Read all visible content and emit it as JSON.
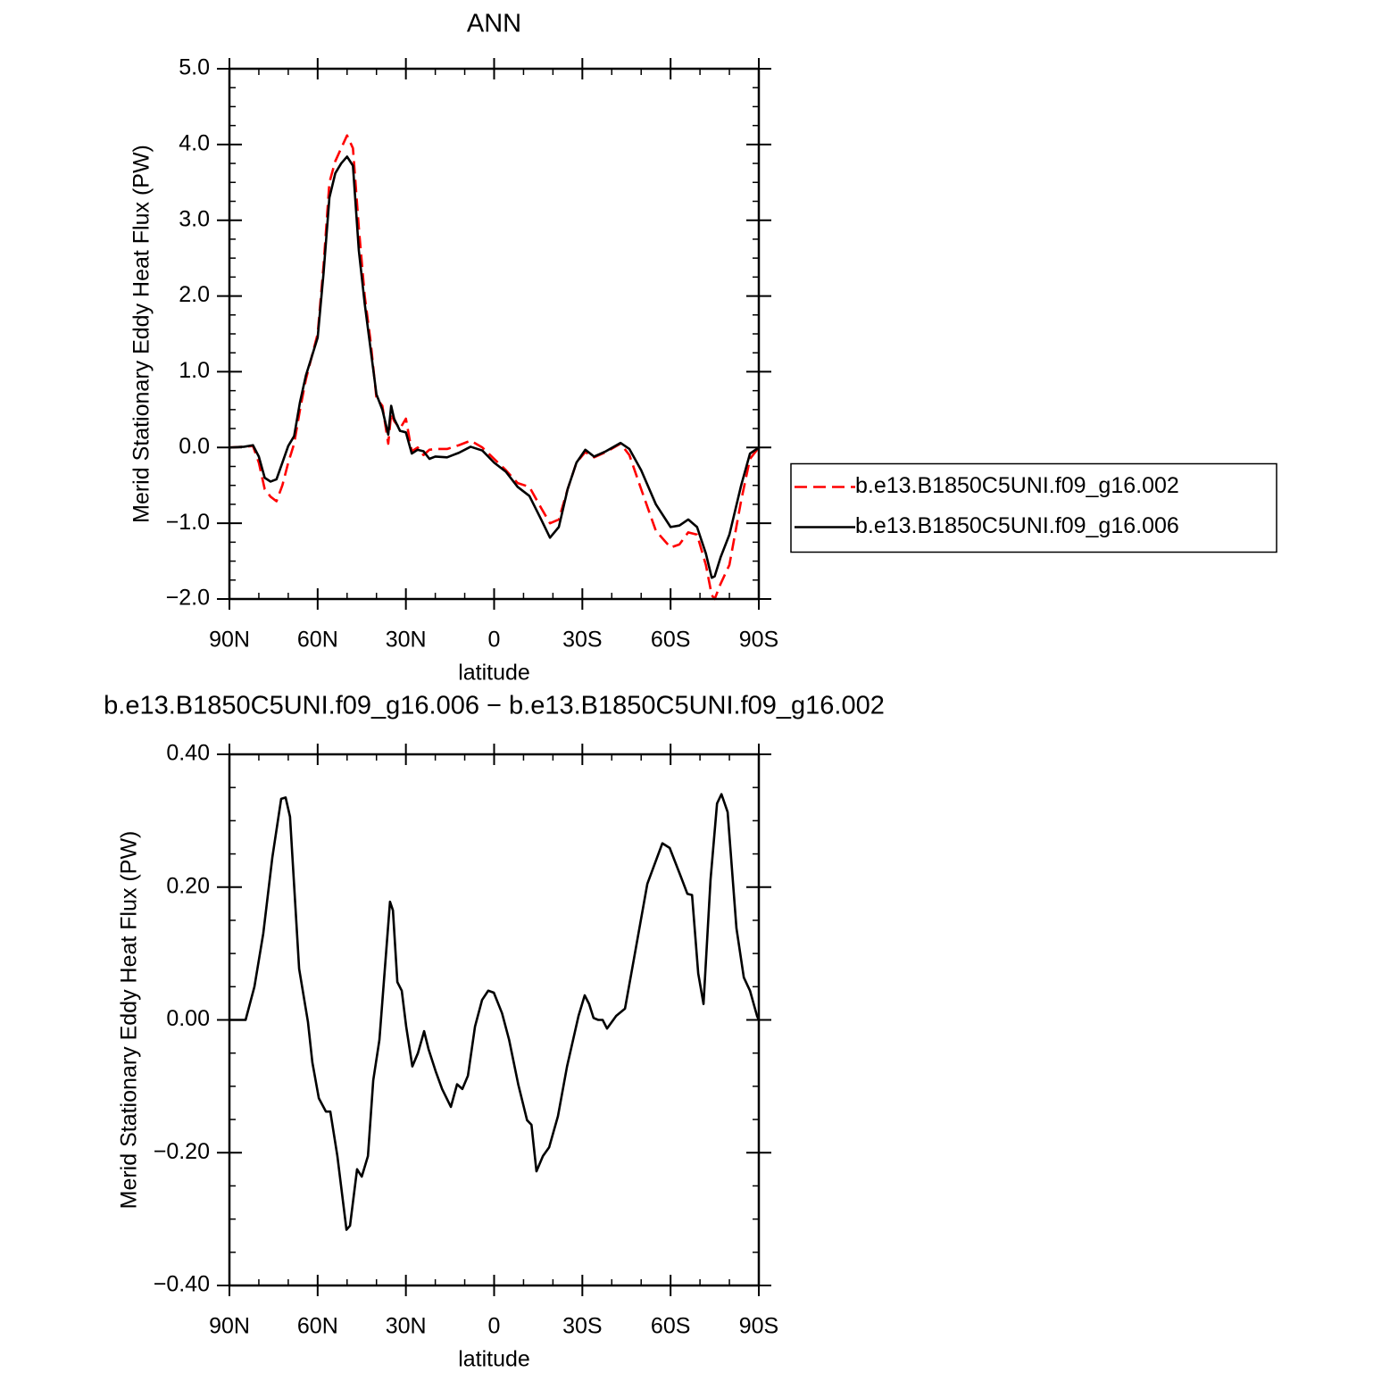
{
  "chart_data": [
    {
      "type": "line",
      "title": "ANN",
      "xlabel": "latitude",
      "ylabel": "Merid Stationary Eddy Heat Flux (PW)",
      "xlim": [
        90,
        -90
      ],
      "xticks": [
        {
          "value": 90,
          "label": "90N"
        },
        {
          "value": 60,
          "label": "60N"
        },
        {
          "value": 30,
          "label": "30N"
        },
        0,
        {
          "value": -30,
          "label": "30S"
        },
        {
          "value": -60,
          "label": "60S"
        },
        {
          "value": -90,
          "label": "90S"
        }
      ],
      "xminorticks": [
        80,
        70,
        50,
        40,
        20,
        10,
        -10,
        -20,
        -40,
        -50,
        -70,
        -80
      ],
      "ylim": [
        -2,
        5
      ],
      "yticks": [
        {
          "value": 5,
          "label": "5.0"
        },
        {
          "value": 4,
          "label": "4.0"
        },
        {
          "value": 3,
          "label": "3.0"
        },
        {
          "value": 2,
          "label": "2.0"
        },
        {
          "value": 1,
          "label": "1.0"
        },
        {
          "value": 0,
          "label": "0.0"
        },
        {
          "value": -1,
          "label": "−1.0"
        },
        {
          "value": -2,
          "label": "−2.0"
        }
      ],
      "yminorticks": [
        4.75,
        4.5,
        4.25,
        3.75,
        3.5,
        3.25,
        2.75,
        2.5,
        2.25,
        1.75,
        1.5,
        1.25,
        0.75,
        0.5,
        0.25,
        -0.25,
        -0.5,
        -0.75,
        -1.25,
        -1.5,
        -1.75
      ],
      "legend": "right",
      "x": [
        90,
        85,
        82,
        80,
        78,
        76,
        74,
        72,
        70,
        68,
        66,
        64,
        62,
        60,
        58,
        56,
        54,
        52,
        50,
        48,
        46,
        44,
        42,
        40,
        38,
        36,
        35,
        34,
        32,
        30,
        28,
        26,
        24,
        22,
        20,
        16,
        12,
        8,
        4,
        0,
        -4,
        -8,
        -12,
        -16,
        -19,
        -22,
        -25,
        -28,
        -31,
        -34,
        -38,
        -43,
        -46,
        -50,
        -55,
        -60,
        -63,
        -66,
        -69,
        -72,
        -74,
        -75,
        -77,
        -80,
        -84,
        -87,
        -90
      ],
      "series": [
        {
          "name": "b.e13.B1850C5UNI.f09_g16.002",
          "color": "#ff0000",
          "linestyle": "dashed",
          "values": [
            0,
            0.01,
            0.02,
            -0.2,
            -0.55,
            -0.65,
            -0.71,
            -0.5,
            -0.2,
            0.05,
            0.5,
            0.9,
            1.2,
            1.5,
            2.4,
            3.5,
            3.78,
            3.95,
            4.12,
            3.95,
            2.9,
            2.0,
            1.4,
            0.65,
            0.55,
            0.05,
            0.45,
            0.35,
            0.25,
            0.38,
            -0.05,
            0,
            -0.1,
            -0.03,
            -0.02,
            -0.02,
            0.03,
            0.09,
            0,
            -0.15,
            -0.3,
            -0.47,
            -0.52,
            -0.8,
            -1.0,
            -0.95,
            -0.55,
            -0.2,
            -0.06,
            -0.13,
            -0.06,
            0.05,
            -0.1,
            -0.55,
            -1.1,
            -1.32,
            -1.28,
            -1.12,
            -1.15,
            -1.55,
            -1.95,
            -2.0,
            -1.8,
            -1.55,
            -0.7,
            -0.15,
            0
          ]
        },
        {
          "name": "b.e13.B1850C5UNI.f09_g16.006",
          "color": "#000000",
          "linestyle": "solid",
          "values": [
            0,
            0.01,
            0.03,
            -0.12,
            -0.4,
            -0.45,
            -0.42,
            -0.2,
            0.02,
            0.15,
            0.6,
            0.95,
            1.2,
            1.45,
            2.3,
            3.3,
            3.62,
            3.75,
            3.84,
            3.72,
            2.6,
            1.9,
            1.3,
            0.7,
            0.5,
            0.17,
            0.55,
            0.38,
            0.22,
            0.2,
            -0.08,
            -0.03,
            -0.05,
            -0.15,
            -0.12,
            -0.13,
            -0.07,
            0.01,
            -0.04,
            -0.2,
            -0.32,
            -0.52,
            -0.64,
            -0.95,
            -1.19,
            -1.05,
            -0.55,
            -0.2,
            -0.03,
            -0.12,
            -0.05,
            0.06,
            -0.02,
            -0.3,
            -0.75,
            -1.05,
            -1.03,
            -0.95,
            -1.05,
            -1.4,
            -1.72,
            -1.7,
            -1.45,
            -1.15,
            -0.5,
            -0.08,
            0
          ]
        }
      ]
    },
    {
      "type": "line",
      "title": "b.e13.B1850C5UNI.f09_g16.006 − b.e13.B1850C5UNI.f09_g16.002",
      "xlabel": "latitude",
      "ylabel": "Merid Stationary Eddy Heat Flux (PW)",
      "xlim": [
        90,
        -90
      ],
      "xticks": [
        {
          "value": 90,
          "label": "90N"
        },
        {
          "value": 60,
          "label": "60N"
        },
        {
          "value": 30,
          "label": "30N"
        },
        0,
        {
          "value": -30,
          "label": "30S"
        },
        {
          "value": -60,
          "label": "60S"
        },
        {
          "value": -90,
          "label": "90S"
        }
      ],
      "xminorticks": [
        80,
        70,
        50,
        40,
        20,
        10,
        -10,
        -20,
        -40,
        -50,
        -70,
        -80
      ],
      "ylim": [
        -0.4,
        0.4
      ],
      "yticks": [
        {
          "value": 0.4,
          "label": "0.40"
        },
        {
          "value": 0.2,
          "label": "0.20"
        },
        {
          "value": 0,
          "label": "0.00"
        },
        {
          "value": -0.2,
          "label": "−0.20"
        },
        {
          "value": -0.4,
          "label": "−0.40"
        }
      ],
      "yminorticks": [
        0.35,
        0.3,
        0.25,
        0.15,
        0.1,
        0.05,
        -0.05,
        -0.1,
        -0.15,
        -0.25,
        -0.3,
        -0.35
      ],
      "x": [
        90,
        84.5,
        81.5,
        78.5,
        75.4,
        72.4,
        70.9,
        69.4,
        66.3,
        63.3,
        61.8,
        59.6,
        57.2,
        55.7,
        53.3,
        50.2,
        49,
        46.6,
        45,
        42.9,
        41.1,
        39,
        37.5,
        35.4,
        34.4,
        32.9,
        31.4,
        29.9,
        27.8,
        25.9,
        23.8,
        22.3,
        19.9,
        17.7,
        14.7,
        12.6,
        10.8,
        8.9,
        6.5,
        4.1,
        2,
        0.1,
        -2.7,
        -5.1,
        -8.2,
        -11.2,
        -12.7,
        -14.4,
        -16.6,
        -18.7,
        -21.7,
        -24.8,
        -28.7,
        -30.8,
        -32.3,
        -33.8,
        -35.4,
        -36.9,
        -38.4,
        -41.5,
        -44.5,
        -47.5,
        -52.1,
        -57.2,
        -59.7,
        -63.3,
        -65.7,
        -67.3,
        -69.4,
        -71.2,
        -73.6,
        -75.8,
        -77.3,
        -79.4,
        -82.4,
        -84.9,
        -87,
        -89.4,
        -90
      ],
      "series": [
        {
          "color": "#000000",
          "linestyle": "solid",
          "values": [
            0,
            0,
            0.05,
            0.13,
            0.245,
            0.333,
            0.335,
            0.306,
            0.077,
            -0.003,
            -0.064,
            -0.118,
            -0.138,
            -0.138,
            -0.205,
            -0.316,
            -0.31,
            -0.225,
            -0.236,
            -0.205,
            -0.091,
            -0.03,
            0.057,
            0.178,
            0.165,
            0.057,
            0.044,
            -0.01,
            -0.07,
            -0.05,
            -0.017,
            -0.044,
            -0.077,
            -0.104,
            -0.131,
            -0.097,
            -0.104,
            -0.084,
            -0.01,
            0.03,
            0.044,
            0.041,
            0.01,
            -0.03,
            -0.097,
            -0.151,
            -0.158,
            -0.228,
            -0.205,
            -0.192,
            -0.145,
            -0.07,
            0.006,
            0.037,
            0.024,
            0.003,
            0,
            0,
            -0.013,
            0.006,
            0.017,
            0.091,
            0.205,
            0.266,
            0.259,
            0.218,
            0.19,
            0.188,
            0.07,
            0.024,
            0.212,
            0.326,
            0.34,
            0.313,
            0.138,
            0.064,
            0.044,
            0.006,
            0
          ]
        }
      ]
    }
  ]
}
